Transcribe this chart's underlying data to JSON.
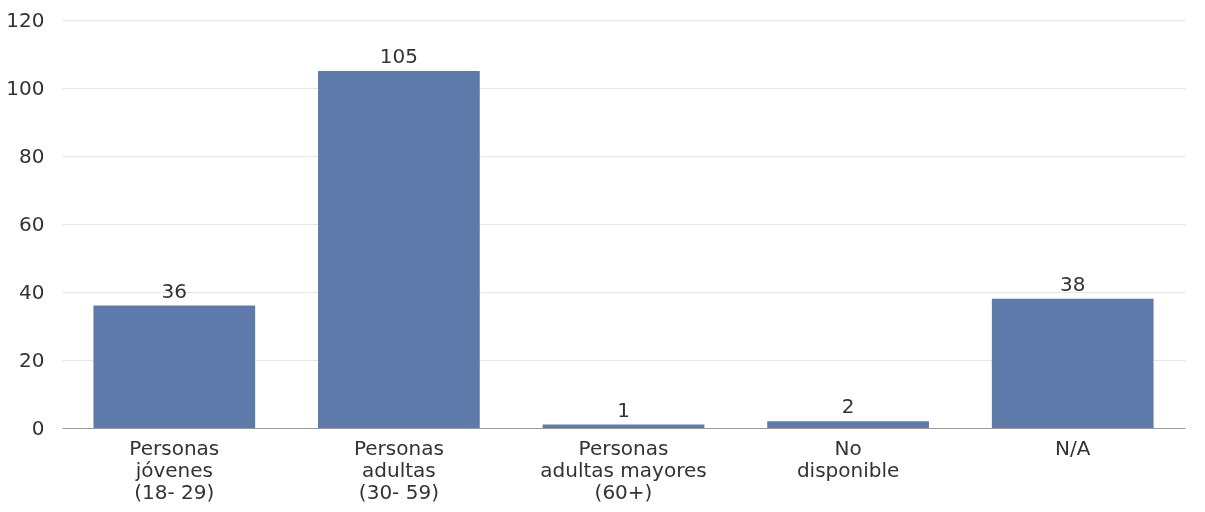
{
  "chart_data": {
    "type": "bar",
    "categories": [
      "Personas\njóvenes\n(18- 29)",
      "Personas\nadultas\n(30- 59)",
      "Personas\nadultas mayores\n(60+)",
      "No\ndisponible",
      "N/A"
    ],
    "values": [
      36,
      105,
      1,
      2,
      38
    ],
    "color": "#5e7aaa",
    "ylim": [
      0,
      120
    ],
    "yticks": [
      0,
      20,
      40,
      60,
      80,
      100,
      120
    ],
    "grid": "y",
    "data_labels": true
  }
}
